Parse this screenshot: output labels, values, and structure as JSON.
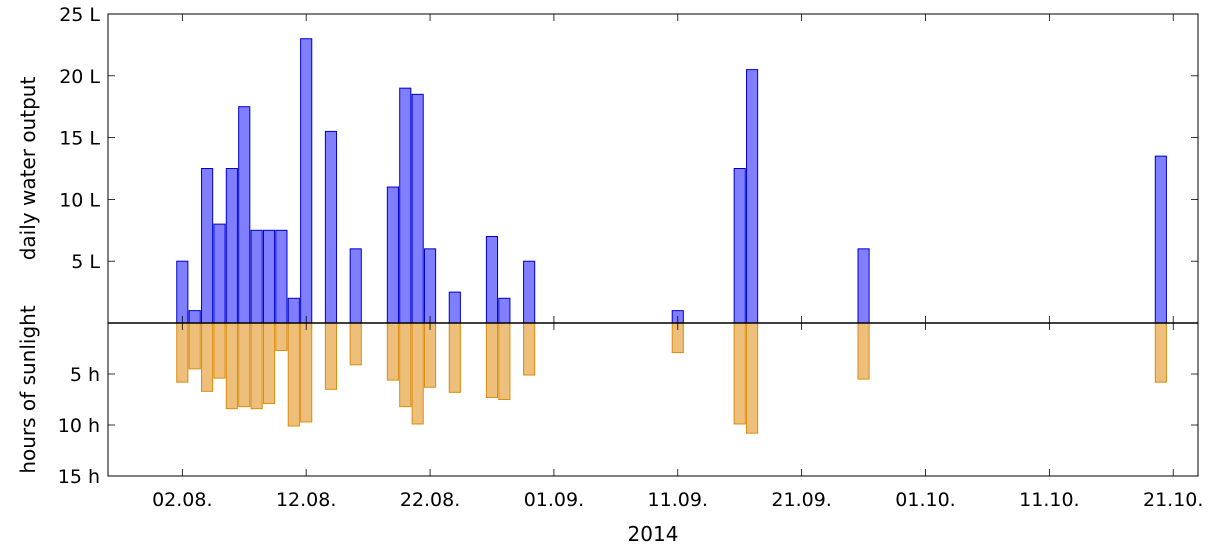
{
  "chart_data": {
    "type": "bar",
    "xlabel": "2014",
    "x_tick_labels": [
      "02.08.",
      "12.08.",
      "22.08.",
      "01.09.",
      "11.09.",
      "21.09.",
      "01.10.",
      "11.10.",
      "21.10."
    ],
    "x_tick_dates": [
      "2014-08-02",
      "2014-08-12",
      "2014-08-22",
      "2014-09-01",
      "2014-09-11",
      "2014-09-21",
      "2014-10-01",
      "2014-10-11",
      "2014-10-21"
    ],
    "xlim": [
      "2014-07-27",
      "2014-10-23"
    ],
    "grid": false,
    "panels": [
      {
        "ylabel": "daily water output",
        "ylim": [
          0,
          25
        ],
        "y_tick_labels": [
          "5 L",
          "10 L",
          "15 L",
          "20 L",
          "25 L"
        ],
        "y_tick_values": [
          5,
          10,
          15,
          20,
          25
        ],
        "direction": "up",
        "color": "#7f7fff",
        "stroke": "#0000cc"
      },
      {
        "ylabel": "hours of sunlight",
        "ylim": [
          0,
          15
        ],
        "y_tick_labels": [
          "5 h",
          "10 h",
          "15 h"
        ],
        "y_tick_values": [
          5,
          10,
          15
        ],
        "direction": "down",
        "color": "#eebf7a",
        "stroke": "#d98c10"
      }
    ],
    "series": [
      {
        "name": "daily water output",
        "unit": "L",
        "points": [
          {
            "x": "2014-08-02",
            "y": 5
          },
          {
            "x": "2014-08-03",
            "y": 1
          },
          {
            "x": "2014-08-04",
            "y": 12.5
          },
          {
            "x": "2014-08-05",
            "y": 8
          },
          {
            "x": "2014-08-06",
            "y": 12.5
          },
          {
            "x": "2014-08-07",
            "y": 17.5
          },
          {
            "x": "2014-08-08",
            "y": 7.5
          },
          {
            "x": "2014-08-09",
            "y": 7.5
          },
          {
            "x": "2014-08-10",
            "y": 7.5
          },
          {
            "x": "2014-08-11",
            "y": 2
          },
          {
            "x": "2014-08-12",
            "y": 23
          },
          {
            "x": "2014-08-14",
            "y": 15.5
          },
          {
            "x": "2014-08-16",
            "y": 6
          },
          {
            "x": "2014-08-19",
            "y": 11
          },
          {
            "x": "2014-08-20",
            "y": 19
          },
          {
            "x": "2014-08-21",
            "y": 18.5
          },
          {
            "x": "2014-08-22",
            "y": 6
          },
          {
            "x": "2014-08-24",
            "y": 2.5
          },
          {
            "x": "2014-08-27",
            "y": 7
          },
          {
            "x": "2014-08-28",
            "y": 2
          },
          {
            "x": "2014-08-30",
            "y": 5
          },
          {
            "x": "2014-09-11",
            "y": 1
          },
          {
            "x": "2014-09-16",
            "y": 12.5
          },
          {
            "x": "2014-09-17",
            "y": 20.5
          },
          {
            "x": "2014-09-26",
            "y": 6
          },
          {
            "x": "2014-10-20",
            "y": 13.5
          }
        ]
      },
      {
        "name": "hours of sunlight",
        "unit": "h",
        "points": [
          {
            "x": "2014-08-02",
            "y": 5.8
          },
          {
            "x": "2014-08-03",
            "y": 4.5
          },
          {
            "x": "2014-08-04",
            "y": 6.7
          },
          {
            "x": "2014-08-05",
            "y": 5.4
          },
          {
            "x": "2014-08-06",
            "y": 8.4
          },
          {
            "x": "2014-08-07",
            "y": 8.2
          },
          {
            "x": "2014-08-08",
            "y": 8.4
          },
          {
            "x": "2014-08-09",
            "y": 7.9
          },
          {
            "x": "2014-08-10",
            "y": 2.7
          },
          {
            "x": "2014-08-11",
            "y": 10.1
          },
          {
            "x": "2014-08-12",
            "y": 9.7
          },
          {
            "x": "2014-08-14",
            "y": 6.5
          },
          {
            "x": "2014-08-16",
            "y": 4.1
          },
          {
            "x": "2014-08-19",
            "y": 5.6
          },
          {
            "x": "2014-08-20",
            "y": 8.2
          },
          {
            "x": "2014-08-21",
            "y": 9.9
          },
          {
            "x": "2014-08-22",
            "y": 6.3
          },
          {
            "x": "2014-08-24",
            "y": 6.8
          },
          {
            "x": "2014-08-27",
            "y": 7.3
          },
          {
            "x": "2014-08-28",
            "y": 7.5
          },
          {
            "x": "2014-08-30",
            "y": 5.1
          },
          {
            "x": "2014-09-11",
            "y": 2.9
          },
          {
            "x": "2014-09-16",
            "y": 9.9
          },
          {
            "x": "2014-09-17",
            "y": 10.8
          },
          {
            "x": "2014-09-26",
            "y": 5.5
          },
          {
            "x": "2014-10-20",
            "y": 5.8
          }
        ]
      }
    ]
  }
}
